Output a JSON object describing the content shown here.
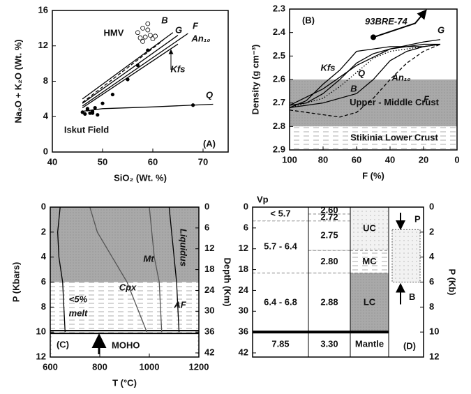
{
  "chart_data": [
    {
      "type": "line",
      "xlabel": "SiO₂ (Wt. %)",
      "ylabel": "Na₂O + K₂O (Wt. %)",
      "xlim": [
        40,
        75
      ],
      "xticks": [
        40,
        50,
        60,
        70
      ],
      "ylim": [
        0,
        16
      ],
      "yticks": [
        0,
        4,
        8,
        12,
        16
      ],
      "series": [
        {
          "name": "B",
          "color": "#000",
          "dash": "solid",
          "x": [
            46,
            64
          ],
          "values": [
            6,
            13.5
          ]
        },
        {
          "name": "G",
          "color": "#000",
          "dash": "solid",
          "x": [
            46,
            65
          ],
          "values": [
            5.5,
            13.2
          ]
        },
        {
          "name": "F",
          "color": "#000",
          "dash": "solid",
          "x": [
            46,
            67
          ],
          "values": [
            5.2,
            13.4
          ]
        },
        {
          "name": "An₁₀",
          "color": "#000",
          "dash": "solid",
          "x": [
            46,
            65
          ],
          "values": [
            5.0,
            12.2
          ]
        },
        {
          "name": "Kfs",
          "color": "#000",
          "dash": "dashed",
          "x": [
            46,
            62
          ],
          "values": [
            5.6,
            12.6
          ]
        },
        {
          "name": "Q",
          "color": "#000",
          "dash": "solid",
          "x": [
            46,
            50,
            60,
            68,
            72
          ],
          "values": [
            4.6,
            4.9,
            5.1,
            5.3,
            5.4
          ]
        }
      ],
      "open_points": {
        "x": [
          57,
          58,
          58.5,
          59,
          59.5,
          60,
          58,
          59,
          57.5,
          60.5
        ],
        "values": [
          13.5,
          14,
          13,
          14.5,
          13.2,
          12.8,
          12.5,
          13.8,
          12.9,
          13.1
        ]
      },
      "filled_points": {
        "x": [
          46,
          46.5,
          47,
          47.5,
          48,
          48.5,
          49,
          47,
          48,
          50,
          52,
          55,
          57,
          59,
          68
        ],
        "values": [
          4.5,
          4.3,
          4.8,
          4.4,
          4.6,
          5,
          4.2,
          4.9,
          4.4,
          5.5,
          6.5,
          8.2,
          9.8,
          11.5,
          5.3
        ]
      },
      "annotations": [
        "HMV",
        "Iskut Field",
        "(A)"
      ]
    },
    {
      "type": "line",
      "xlabel": "F (%)",
      "ylabel": "Density (g cm⁻³)",
      "x_inverted": true,
      "y_inverted": true,
      "xlim": [
        0,
        100
      ],
      "xticks": [
        100,
        80,
        60,
        40,
        20,
        0
      ],
      "ylim": [
        2.3,
        2.9
      ],
      "yticks": [
        2.3,
        2.4,
        2.5,
        2.6,
        2.7,
        2.8,
        2.9
      ],
      "bands": [
        {
          "label": "Upper - Middle Crust",
          "range": [
            2.6,
            2.8
          ],
          "fill": "grey"
        },
        {
          "label": "Stikinia Lower Crust",
          "range": [
            2.8,
            2.9
          ],
          "fill": "hatch"
        }
      ],
      "series": [
        {
          "name": "Kfs",
          "color": "#000",
          "dash": "solid",
          "x": [
            100,
            90,
            80,
            70,
            60,
            50,
            40,
            30,
            20,
            10
          ],
          "values": [
            2.72,
            2.69,
            2.62,
            2.56,
            2.48,
            2.47,
            2.46,
            2.46,
            2.46,
            2.45
          ]
        },
        {
          "name": "Q",
          "color": "#000",
          "dash": "solid",
          "x": [
            100,
            90,
            80,
            70,
            60,
            50,
            40,
            30,
            20,
            10
          ],
          "values": [
            2.71,
            2.7,
            2.66,
            2.6,
            2.53,
            2.49,
            2.47,
            2.46,
            2.45,
            2.45
          ]
        },
        {
          "name": "B",
          "color": "#000",
          "dash": "dotted",
          "x": [
            100,
            80,
            70,
            60,
            50,
            40,
            30,
            20,
            10
          ],
          "values": [
            2.72,
            2.68,
            2.63,
            2.57,
            2.51,
            2.48,
            2.47,
            2.46,
            2.45
          ]
        },
        {
          "name": "An₁₀",
          "color": "#000",
          "dash": "solid",
          "x": [
            100,
            80,
            60,
            50,
            40,
            30,
            20,
            10
          ],
          "values": [
            2.72,
            2.7,
            2.66,
            2.6,
            2.52,
            2.48,
            2.46,
            2.45
          ]
        },
        {
          "name": "F",
          "color": "#000",
          "dash": "dashed",
          "x": [
            100,
            80,
            70,
            60,
            50,
            40,
            30,
            20,
            10
          ],
          "values": [
            2.73,
            2.75,
            2.76,
            2.74,
            2.68,
            2.6,
            2.53,
            2.48,
            2.45
          ]
        },
        {
          "name": "G",
          "color": "#000",
          "dash": "solid",
          "x": [
            100,
            80,
            60,
            40,
            20,
            10
          ],
          "values": [
            2.71,
            2.64,
            2.54,
            2.47,
            2.44,
            2.43
          ]
        }
      ],
      "sample": {
        "label": "93BRE-74",
        "x": 50,
        "y": 2.42
      },
      "annotations": [
        "(B)"
      ]
    },
    {
      "type": "line",
      "xlabel": "T (°C)",
      "ylabel": "P (Kbars)",
      "y2label": "Depth (Km)",
      "y_inverted": true,
      "xlim": [
        600,
        1200
      ],
      "xticks": [
        600,
        800,
        1000,
        1200
      ],
      "ylim": [
        0,
        12
      ],
      "yticks": [
        0,
        2,
        4,
        6,
        8,
        10,
        12
      ],
      "y2lim": [
        0,
        43.2
      ],
      "y2ticks": [
        0,
        6,
        12,
        18,
        24,
        30,
        36,
        42
      ],
      "bands": [
        {
          "range": [
            0,
            6
          ],
          "fill": "grey"
        },
        {
          "range": [
            6,
            12
          ],
          "fill": "hatch"
        }
      ],
      "hlines": [
        {
          "value": 10,
          "label": "MOHO"
        }
      ],
      "series": [
        {
          "color": "#000",
          "dash": "solid",
          "x": [
            640,
            630,
            635,
            650,
            660
          ],
          "values": [
            0,
            2,
            4,
            6,
            10
          ]
        },
        {
          "name": "Cpx",
          "color": "#555",
          "dash": "solid",
          "x": [
            760,
            790,
            850,
            910,
            950,
            990
          ],
          "values": [
            0,
            2,
            4,
            6,
            8,
            10
          ]
        },
        {
          "name": "Mt",
          "color": "#555",
          "dash": "solid",
          "x": [
            1000,
            1010,
            1020,
            1040,
            1050
          ],
          "values": [
            0,
            2,
            4,
            6,
            10
          ]
        },
        {
          "name": "Liquidus",
          "color": "#000",
          "dash": "solid",
          "x": [
            1080,
            1090,
            1100,
            1110,
            1120
          ],
          "values": [
            0,
            2,
            4,
            6,
            10
          ]
        }
      ],
      "annotations": [
        "(C)",
        "<5%",
        "melt",
        "AF"
      ]
    },
    {
      "type": "column",
      "ylabel": "Depth (Km)",
      "y2label": "P (Kb)",
      "ylim": [
        0,
        43.2
      ],
      "yticks": [
        0,
        6,
        12,
        18,
        24,
        30,
        36,
        42
      ],
      "y2lim": [
        0,
        12
      ],
      "y2ticks": [
        0,
        2,
        4,
        6,
        8,
        10,
        12
      ],
      "vp_header": "Vp",
      "vp_layers": [
        {
          "label": "< 5.7",
          "top": 0,
          "bottom": 4
        },
        {
          "label": "5.7 - 6.4",
          "top": 4,
          "bottom": 19
        },
        {
          "label": "6.4 - 6.8",
          "top": 19,
          "bottom": 36
        },
        {
          "label": "7.85",
          "top": 36,
          "bottom": 43.2
        }
      ],
      "density_layers": [
        {
          "label": "2.60",
          "top": 0,
          "bottom": 2
        },
        {
          "label": "2.72",
          "top": 2,
          "bottom": 4
        },
        {
          "label": "2.75",
          "top": 4,
          "bottom": 12.5
        },
        {
          "label": "2.80",
          "top": 12.5,
          "bottom": 19
        },
        {
          "label": "2.88",
          "top": 19,
          "bottom": 36
        },
        {
          "label": "3.30",
          "top": 36,
          "bottom": 43.2
        }
      ],
      "crust_layers": [
        {
          "label": "UC",
          "top": 0,
          "bottom": 12.5
        },
        {
          "label": "MC",
          "top": 12.5,
          "bottom": 19
        },
        {
          "label": "LC",
          "top": 19,
          "bottom": 36
        },
        {
          "label": "Mantle",
          "top": 36,
          "bottom": 43.2
        }
      ],
      "moho": 36,
      "pb_box": {
        "top_label": "P",
        "bottom_label": "B",
        "range": [
          1.8,
          6
        ]
      },
      "annotations": [
        "(D)"
      ]
    }
  ]
}
